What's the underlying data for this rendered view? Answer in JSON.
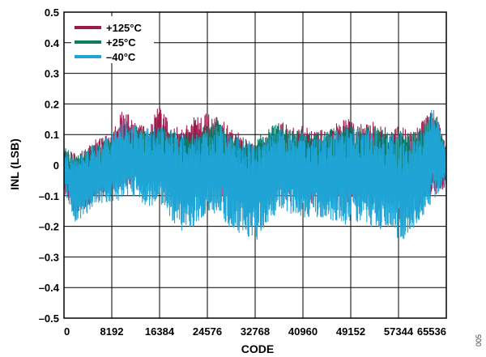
{
  "chart_data": {
    "type": "line",
    "title": "",
    "xlabel": "CODE",
    "ylabel": "INL (LSB)",
    "xlim": [
      0,
      65536
    ],
    "ylim": [
      -0.5,
      0.5
    ],
    "xticks": [
      0,
      8192,
      16384,
      24576,
      32768,
      40960,
      49152,
      57344,
      65536
    ],
    "xtick_labels": [
      "0",
      "8192",
      "16384",
      "24576",
      "32768",
      "40960",
      "49152",
      "57344",
      "65536"
    ],
    "yticks": [
      0.5,
      0.4,
      0.3,
      0.2,
      0.1,
      0,
      -0.1,
      -0.2,
      -0.3,
      -0.4,
      -0.5
    ],
    "ytick_labels": [
      "0.5",
      "0.4",
      "0.3",
      "0.2",
      "0.1",
      "0",
      "–0.1",
      "–0.2",
      "–0.3",
      "–0.4",
      "–0.5"
    ],
    "grid": true,
    "legend_position": "top-left",
    "x": [
      0,
      2048,
      4096,
      6144,
      8192,
      10240,
      12288,
      14336,
      16384,
      18432,
      20480,
      22528,
      24576,
      26624,
      28672,
      30720,
      32768,
      34816,
      36864,
      38912,
      40960,
      43008,
      45056,
      47104,
      49152,
      51200,
      53248,
      55296,
      57344,
      59392,
      61440,
      63488,
      65536
    ],
    "series": [
      {
        "name": "+125°C",
        "color": "#9b1b4a",
        "upper": [
          0.05,
          0.04,
          0.07,
          0.09,
          0.11,
          0.19,
          0.14,
          0.12,
          0.2,
          0.13,
          0.12,
          0.16,
          0.18,
          0.16,
          0.12,
          0.1,
          0.06,
          0.1,
          0.15,
          0.12,
          0.13,
          0.11,
          0.12,
          0.14,
          0.16,
          0.13,
          0.15,
          0.12,
          0.13,
          0.11,
          0.15,
          0.19,
          0.06
        ],
        "lower": [
          -0.09,
          -0.17,
          -0.14,
          -0.11,
          -0.09,
          -0.07,
          -0.06,
          -0.08,
          -0.07,
          -0.09,
          -0.08,
          -0.1,
          -0.08,
          -0.11,
          -0.12,
          -0.15,
          -0.13,
          -0.14,
          -0.1,
          -0.12,
          -0.11,
          -0.13,
          -0.12,
          -0.14,
          -0.13,
          -0.12,
          -0.15,
          -0.13,
          -0.14,
          -0.17,
          -0.13,
          -0.1,
          -0.07
        ]
      },
      {
        "name": "+25°C",
        "color": "#0f7a66",
        "upper": [
          0.06,
          0.03,
          0.06,
          0.08,
          0.09,
          0.1,
          0.13,
          0.11,
          0.12,
          0.11,
          0.1,
          0.11,
          0.13,
          0.16,
          0.11,
          0.09,
          0.08,
          0.12,
          0.14,
          0.11,
          0.12,
          0.1,
          0.11,
          0.13,
          0.13,
          0.12,
          0.13,
          0.11,
          0.12,
          0.1,
          0.13,
          0.18,
          0.05
        ],
        "lower": [
          -0.06,
          -0.12,
          -0.1,
          -0.08,
          -0.07,
          -0.06,
          -0.05,
          -0.06,
          -0.06,
          -0.07,
          -0.06,
          -0.07,
          -0.06,
          -0.07,
          -0.09,
          -0.11,
          -0.1,
          -0.1,
          -0.07,
          -0.09,
          -0.08,
          -0.09,
          -0.08,
          -0.1,
          -0.09,
          -0.08,
          -0.1,
          -0.09,
          -0.1,
          -0.12,
          -0.08,
          -0.06,
          -0.05
        ]
      },
      {
        "name": "–40°C",
        "color": "#1ea5d6",
        "upper": [
          0.04,
          0.02,
          0.05,
          0.08,
          0.11,
          0.15,
          0.13,
          0.12,
          0.13,
          0.11,
          0.1,
          0.1,
          0.12,
          0.13,
          0.1,
          0.09,
          0.07,
          0.1,
          0.13,
          0.1,
          0.11,
          0.09,
          0.1,
          0.12,
          0.13,
          0.11,
          0.12,
          0.1,
          0.11,
          0.09,
          0.12,
          0.2,
          0.04
        ],
        "lower": [
          -0.08,
          -0.19,
          -0.16,
          -0.13,
          -0.12,
          -0.11,
          -0.1,
          -0.14,
          -0.12,
          -0.18,
          -0.22,
          -0.2,
          -0.16,
          -0.17,
          -0.21,
          -0.23,
          -0.26,
          -0.19,
          -0.15,
          -0.16,
          -0.17,
          -0.18,
          -0.17,
          -0.19,
          -0.2,
          -0.18,
          -0.22,
          -0.2,
          -0.26,
          -0.22,
          -0.17,
          -0.12,
          -0.06
        ]
      }
    ]
  },
  "figure_id": "005"
}
